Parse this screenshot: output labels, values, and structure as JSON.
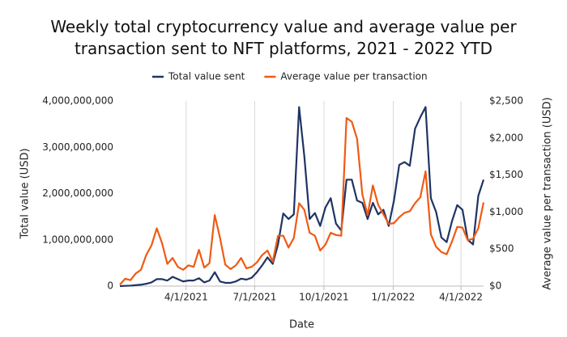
{
  "chart_data": {
    "type": "line",
    "title": "Weekly total cryptocurrency value and average value per transaction sent to NFT platforms, 2021 - 2022 YTD",
    "x_label": "Date",
    "y_label": "Total value (USD)",
    "y2_label": "Average value per transaction (USD)",
    "x": [
      "2021-01-03",
      "2021-01-10",
      "2021-01-17",
      "2021-01-24",
      "2021-01-31",
      "2021-02-07",
      "2021-02-14",
      "2021-02-21",
      "2021-02-28",
      "2021-03-07",
      "2021-03-14",
      "2021-03-21",
      "2021-03-28",
      "2021-04-04",
      "2021-04-11",
      "2021-04-18",
      "2021-04-25",
      "2021-05-02",
      "2021-05-09",
      "2021-05-16",
      "2021-05-23",
      "2021-05-30",
      "2021-06-06",
      "2021-06-13",
      "2021-06-20",
      "2021-06-27",
      "2021-07-04",
      "2021-07-11",
      "2021-07-18",
      "2021-07-25",
      "2021-08-01",
      "2021-08-08",
      "2021-08-15",
      "2021-08-22",
      "2021-08-29",
      "2021-09-05",
      "2021-09-12",
      "2021-09-19",
      "2021-09-26",
      "2021-10-03",
      "2021-10-10",
      "2021-10-17",
      "2021-10-24",
      "2021-10-31",
      "2021-11-07",
      "2021-11-14",
      "2021-11-21",
      "2021-11-28",
      "2021-12-05",
      "2021-12-12",
      "2021-12-19",
      "2021-12-26",
      "2022-01-02",
      "2022-01-09",
      "2022-01-16",
      "2022-01-23",
      "2022-01-30",
      "2022-02-06",
      "2022-02-13",
      "2022-02-20",
      "2022-02-27",
      "2022-03-06",
      "2022-03-13",
      "2022-03-20",
      "2022-03-27",
      "2022-04-03",
      "2022-04-10",
      "2022-04-17",
      "2022-04-24",
      "2022-05-01"
    ],
    "series": [
      {
        "name": "Total value sent",
        "color": "#1f3465",
        "axis": "y",
        "values": [
          0,
          5000000,
          10000000,
          20000000,
          30000000,
          50000000,
          80000000,
          150000000,
          150000000,
          120000000,
          200000000,
          150000000,
          100000000,
          120000000,
          120000000,
          170000000,
          80000000,
          120000000,
          300000000,
          100000000,
          70000000,
          70000000,
          100000000,
          160000000,
          140000000,
          180000000,
          300000000,
          450000000,
          620000000,
          480000000,
          900000000,
          1570000000,
          1450000000,
          1550000000,
          3870000000,
          2800000000,
          1450000000,
          1580000000,
          1300000000,
          1700000000,
          1900000000,
          1350000000,
          1200000000,
          2300000000,
          2300000000,
          1850000000,
          1800000000,
          1450000000,
          1800000000,
          1550000000,
          1650000000,
          1300000000,
          1850000000,
          2620000000,
          2680000000,
          2600000000,
          3400000000,
          3650000000,
          3870000000,
          1900000000,
          1600000000,
          1050000000,
          950000000,
          1400000000,
          1750000000,
          1650000000,
          1000000000,
          900000000,
          1950000000,
          2300000000
        ]
      },
      {
        "name": "Average value per transaction",
        "color": "#f05a14",
        "axis": "y2",
        "values": [
          20,
          100,
          80,
          170,
          220,
          420,
          550,
          780,
          580,
          300,
          380,
          260,
          220,
          280,
          260,
          490,
          250,
          310,
          960,
          650,
          290,
          230,
          280,
          380,
          240,
          260,
          320,
          420,
          480,
          330,
          680,
          680,
          520,
          650,
          1120,
          1030,
          720,
          680,
          480,
          560,
          720,
          690,
          680,
          2270,
          2220,
          1990,
          1240,
          960,
          1360,
          1100,
          970,
          840,
          850,
          930,
          990,
          1010,
          1120,
          1200,
          1550,
          700,
          530,
          460,
          430,
          600,
          800,
          790,
          620,
          640,
          780,
          1130
        ]
      }
    ],
    "xticks": [
      {
        "value": "2021-04-01",
        "label": "4/1/2021"
      },
      {
        "value": "2021-07-01",
        "label": "7/1/2021"
      },
      {
        "value": "2021-10-01",
        "label": "10/1/2021"
      },
      {
        "value": "2022-01-01",
        "label": "1/1/2022"
      },
      {
        "value": "2022-04-01",
        "label": "4/1/2022"
      }
    ],
    "ylim": [
      0,
      4000000000
    ],
    "yticks": [
      0,
      {
        "value": 1000000000,
        "label": "1,000,000,000"
      },
      {
        "value": 2000000000,
        "label": "2,000,000,000"
      },
      {
        "value": 3000000000,
        "label": "3,000,000,000"
      },
      {
        "value": 4000000000,
        "label": "4,000,000,000"
      }
    ],
    "y2lim": [
      0,
      2500
    ],
    "y2ticks": [
      {
        "value": 0,
        "label": "$0"
      },
      {
        "value": 500,
        "label": "$500"
      },
      {
        "value": 1000,
        "label": "$1,000"
      },
      {
        "value": 1500,
        "label": "$1,500"
      },
      {
        "value": 2000,
        "label": "$2,000"
      },
      {
        "value": 2500,
        "label": "$2,500"
      }
    ],
    "grid": "x",
    "legend": "top"
  }
}
